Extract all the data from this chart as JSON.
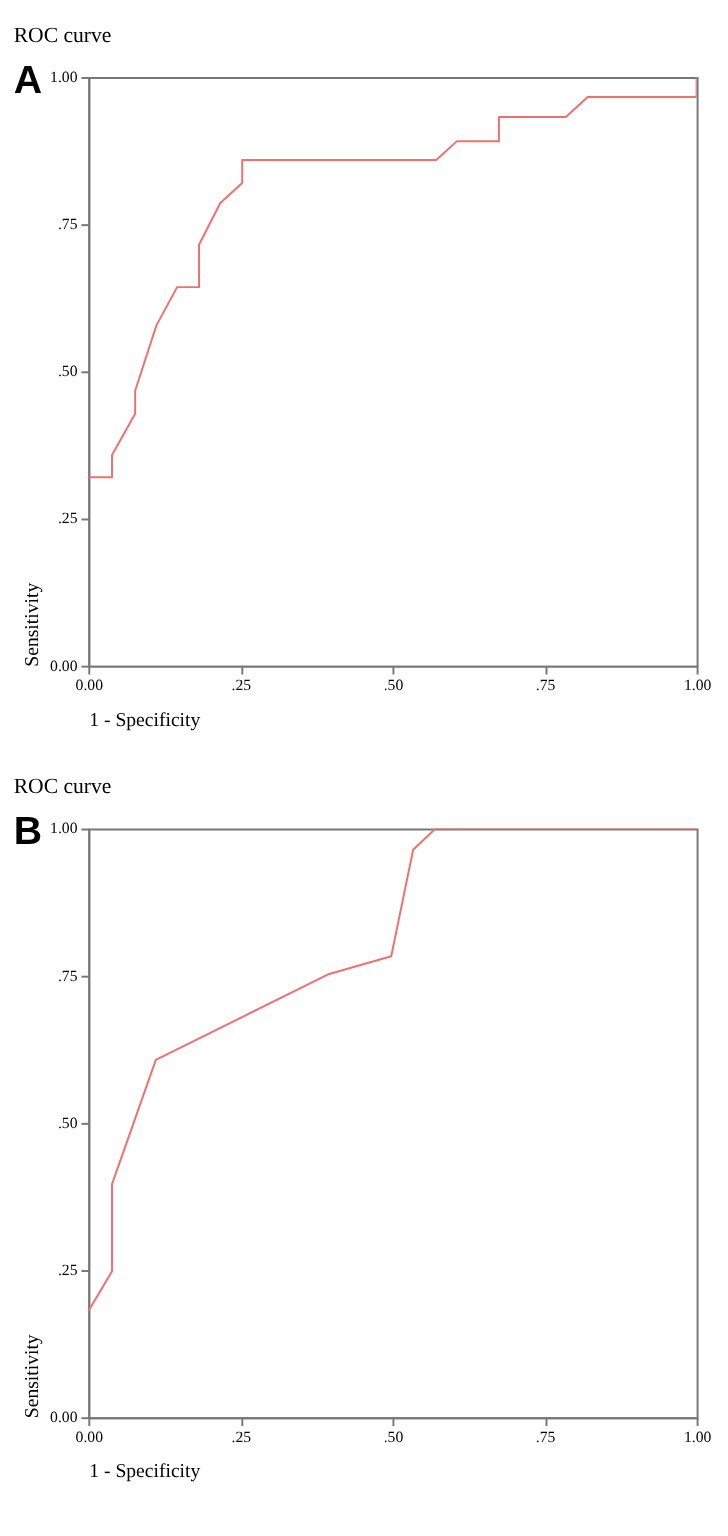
{
  "chart_data": [
    {
      "type": "line",
      "title": "ROC curve",
      "xlabel": "1 - Specificity",
      "ylabel": "Sensitivity",
      "annotations": [
        "A"
      ],
      "grid": false,
      "line_style": "solid",
      "marker": "none",
      "xlim": [
        0,
        1
      ],
      "ylim": [
        0,
        1
      ],
      "xticks": [
        {
          "value": 0,
          "label": "0.00"
        },
        {
          "value": 0.25,
          "label": ".25"
        },
        {
          "value": 0.5,
          "label": ".50"
        },
        {
          "value": 0.75,
          "label": ".75"
        },
        {
          "value": 1,
          "label": "1.00"
        }
      ],
      "yticks": [
        {
          "value": 0,
          "label": "0.00"
        },
        {
          "value": 0.25,
          "label": ".25"
        },
        {
          "value": 0.5,
          "label": ".50"
        },
        {
          "value": 0.75,
          "label": ".75"
        },
        {
          "value": 1,
          "label": "1.00"
        }
      ],
      "series": [
        {
          "color": "#f07070",
          "x": [
            0,
            0.039,
            0.039,
            0.077,
            0.077,
            0.112,
            0.146,
            0.182,
            0.182,
            0.217,
            0.253,
            0.253,
            0.572,
            0.606,
            0.675,
            0.675,
            0.785,
            0.821,
            1,
            1
          ],
          "values": [
            0.32,
            0.32,
            0.358,
            0.428,
            0.467,
            0.578,
            0.643,
            0.643,
            0.715,
            0.786,
            0.82,
            0.859,
            0.859,
            0.891,
            0.891,
            0.932,
            0.932,
            0.966,
            0.966,
            1
          ]
        }
      ]
    },
    {
      "type": "line",
      "title": "ROC curve",
      "xlabel": "1 - Specificity",
      "ylabel": "Sensitivity",
      "annotations": [
        "B"
      ],
      "grid": false,
      "line_style": "solid",
      "marker": "none",
      "xlim": [
        0,
        1
      ],
      "ylim": [
        0,
        1
      ],
      "xticks": [
        {
          "value": 0,
          "label": "0.00"
        },
        {
          "value": 0.25,
          "label": ".25"
        },
        {
          "value": 0.5,
          "label": ".50"
        },
        {
          "value": 0.75,
          "label": ".75"
        },
        {
          "value": 1,
          "label": "1.00"
        }
      ],
      "yticks": [
        {
          "value": 0,
          "label": "0.00"
        },
        {
          "value": 0.25,
          "label": ".25"
        },
        {
          "value": 0.5,
          "label": ".50"
        },
        {
          "value": 0.75,
          "label": ".75"
        },
        {
          "value": 1,
          "label": "1.00"
        }
      ],
      "series": [
        {
          "color": "#f07070",
          "x": [
            0,
            0.039,
            0.039,
            0.111,
            0.396,
            0.498,
            0.534,
            0.571,
            1
          ],
          "values": [
            0.18,
            0.248,
            0.396,
            0.607,
            0.753,
            0.783,
            0.964,
            1,
            1
          ]
        }
      ]
    }
  ]
}
